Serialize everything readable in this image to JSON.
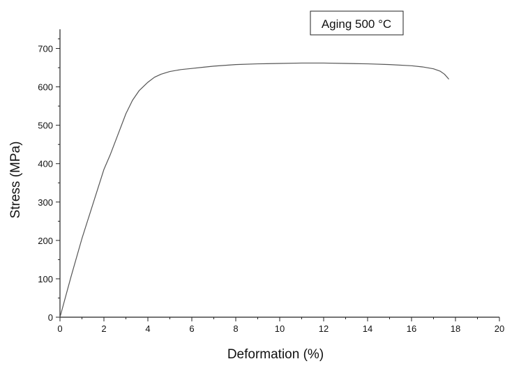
{
  "chart_data": {
    "type": "line",
    "annotation": "Aging 500 °C",
    "xlabel": "Deformation (%)",
    "ylabel": "Stress (MPa)",
    "xlim": [
      0,
      20
    ],
    "ylim": [
      0,
      750
    ],
    "x_ticks": [
      0,
      2,
      4,
      6,
      8,
      10,
      12,
      14,
      16,
      18,
      20
    ],
    "y_ticks": [
      0,
      100,
      200,
      300,
      400,
      500,
      600,
      700
    ],
    "grid": false,
    "legend": "none",
    "line_color": "#555555",
    "series": [
      {
        "x": [
          0,
          0.5,
          1,
          1.5,
          2,
          2.3,
          2.6,
          3,
          3.3,
          3.6,
          4,
          4.3,
          4.6,
          5,
          5.5,
          6,
          6.5,
          7,
          8,
          9,
          10,
          11,
          12,
          13,
          14,
          15,
          16,
          16.5,
          17,
          17.3,
          17.5,
          17.7
        ],
        "y": [
          0,
          105,
          205,
          295,
          385,
          425,
          470,
          530,
          565,
          590,
          612,
          625,
          633,
          640,
          645,
          648,
          651,
          654,
          658,
          660,
          661,
          662,
          662,
          661,
          660,
          658,
          655,
          652,
          647,
          641,
          633,
          620
        ]
      }
    ]
  }
}
